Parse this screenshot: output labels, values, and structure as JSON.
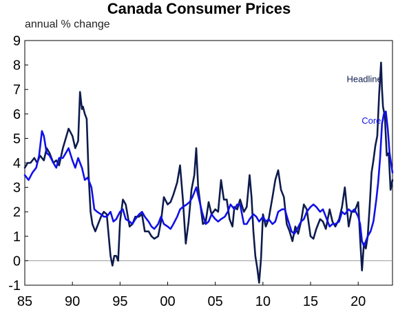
{
  "colors": {
    "headline": "#0d1b4c",
    "core": "#1010e8",
    "zero_line": "#9a9a9a",
    "frame": "#000000"
  },
  "chart_data": {
    "type": "line",
    "title": "Canada Consumer Prices",
    "subtitle": "annual % change",
    "xlim": [
      1985,
      2023.6
    ],
    "ylim": [
      -1,
      9
    ],
    "x_ticks": [
      1985,
      1990,
      1995,
      2000,
      2005,
      2010,
      2015,
      2020
    ],
    "x_tick_labels": [
      "85",
      "90",
      "95",
      "00",
      "05",
      "10",
      "15",
      "20"
    ],
    "y_ticks": [
      -1,
      0,
      1,
      2,
      3,
      4,
      5,
      6,
      7,
      8,
      9
    ],
    "y_tick_labels": [
      "-1",
      "0",
      "1",
      "2",
      "3",
      "4",
      "5",
      "6",
      "7",
      "8",
      "9"
    ],
    "series": [
      {
        "name": "Headline",
        "color": "#0d1b4c",
        "x": [
          1985.0,
          1985.3,
          1985.6,
          1986.0,
          1986.3,
          1986.6,
          1987.0,
          1987.3,
          1987.6,
          1988.0,
          1988.3,
          1988.6,
          1989.0,
          1989.3,
          1989.6,
          1990.0,
          1990.3,
          1990.6,
          1990.8,
          1991.0,
          1991.1,
          1991.3,
          1991.5,
          1991.7,
          1991.9,
          1992.1,
          1992.4,
          1992.7,
          1993.0,
          1993.3,
          1993.6,
          1994.0,
          1994.2,
          1994.4,
          1994.6,
          1994.8,
          1995.0,
          1995.3,
          1995.6,
          1996.0,
          1996.3,
          1996.6,
          1997.0,
          1997.3,
          1997.6,
          1998.0,
          1998.3,
          1998.6,
          1999.0,
          1999.3,
          1999.6,
          2000.0,
          2000.3,
          2000.6,
          2001.0,
          2001.3,
          2001.6,
          2001.9,
          2002.2,
          2002.5,
          2002.8,
          2003.0,
          2003.2,
          2003.4,
          2003.7,
          2004.0,
          2004.3,
          2004.6,
          2005.0,
          2005.3,
          2005.6,
          2005.9,
          2006.2,
          2006.5,
          2006.8,
          2007.0,
          2007.3,
          2007.6,
          2008.0,
          2008.3,
          2008.6,
          2008.8,
          2009.0,
          2009.2,
          2009.4,
          2009.6,
          2009.8,
          2010.0,
          2010.3,
          2010.6,
          2011.0,
          2011.3,
          2011.6,
          2011.9,
          2012.2,
          2012.5,
          2012.8,
          2013.1,
          2013.4,
          2013.7,
          2014.0,
          2014.3,
          2014.6,
          2015.0,
          2015.3,
          2015.6,
          2016.0,
          2016.3,
          2016.6,
          2017.0,
          2017.3,
          2017.6,
          2018.0,
          2018.3,
          2018.6,
          2019.0,
          2019.3,
          2019.6,
          2020.0,
          2020.2,
          2020.4,
          2020.6,
          2020.8,
          2021.0,
          2021.2,
          2021.4,
          2021.6,
          2021.8,
          2022.0,
          2022.2,
          2022.4,
          2022.5,
          2022.6,
          2022.8,
          2023.0,
          2023.2,
          2023.4,
          2023.6
        ],
        "values": [
          3.8,
          4.0,
          4.0,
          4.2,
          4.0,
          4.3,
          4.1,
          4.6,
          4.4,
          4.0,
          4.1,
          3.9,
          4.6,
          5.0,
          5.4,
          5.1,
          4.6,
          4.9,
          6.9,
          6.2,
          6.3,
          6.0,
          5.8,
          3.5,
          2.0,
          1.5,
          1.2,
          1.5,
          1.8,
          2.0,
          1.9,
          0.2,
          -0.2,
          0.2,
          0.2,
          0.0,
          1.6,
          2.5,
          2.3,
          1.4,
          1.5,
          1.8,
          1.8,
          1.9,
          1.2,
          1.2,
          1.0,
          0.9,
          1.0,
          1.6,
          2.6,
          2.3,
          2.4,
          2.7,
          3.2,
          3.9,
          2.5,
          0.7,
          1.6,
          2.9,
          3.5,
          4.6,
          3.0,
          2.4,
          1.5,
          1.6,
          2.4,
          1.9,
          2.1,
          2.0,
          3.3,
          2.5,
          2.5,
          1.7,
          1.4,
          2.2,
          2.1,
          2.5,
          2.0,
          2.2,
          3.5,
          2.6,
          1.2,
          0.2,
          -0.3,
          -0.9,
          0.1,
          1.9,
          1.4,
          1.7,
          2.6,
          3.3,
          3.7,
          2.9,
          2.6,
          1.5,
          1.2,
          0.8,
          1.4,
          1.1,
          1.6,
          2.3,
          2.1,
          1.0,
          0.9,
          1.3,
          1.7,
          1.6,
          1.3,
          2.1,
          1.6,
          1.4,
          1.7,
          2.2,
          3.0,
          1.4,
          2.0,
          2.0,
          2.4,
          0.9,
          -0.4,
          0.7,
          0.5,
          1.0,
          2.2,
          3.6,
          4.1,
          4.7,
          5.1,
          6.8,
          8.1,
          7.0,
          6.3,
          5.9,
          4.3,
          4.4,
          2.9,
          3.3
        ]
      },
      {
        "name": "Core",
        "color": "#1010e8",
        "x": [
          1985.0,
          1985.4,
          1985.8,
          1986.2,
          1986.5,
          1986.8,
          1987.0,
          1987.3,
          1987.6,
          1988.0,
          1988.3,
          1988.6,
          1989.0,
          1989.3,
          1989.6,
          1990.0,
          1990.3,
          1990.6,
          1991.0,
          1991.3,
          1991.6,
          1992.0,
          1992.3,
          1992.6,
          1993.0,
          1993.3,
          1993.6,
          1994.0,
          1994.3,
          1994.6,
          1995.0,
          1995.3,
          1995.6,
          1996.0,
          1996.3,
          1996.6,
          1997.0,
          1997.3,
          1997.6,
          1998.0,
          1998.3,
          1998.6,
          1999.0,
          1999.3,
          1999.6,
          2000.0,
          2000.3,
          2000.6,
          2001.0,
          2001.3,
          2001.6,
          2002.0,
          2002.3,
          2002.6,
          2003.0,
          2003.3,
          2003.6,
          2004.0,
          2004.3,
          2004.6,
          2005.0,
          2005.3,
          2005.6,
          2006.0,
          2006.3,
          2006.6,
          2007.0,
          2007.3,
          2007.6,
          2008.0,
          2008.3,
          2008.6,
          2009.0,
          2009.3,
          2009.6,
          2010.0,
          2010.3,
          2010.6,
          2011.0,
          2011.3,
          2011.6,
          2012.0,
          2012.3,
          2012.6,
          2013.0,
          2013.3,
          2013.6,
          2014.0,
          2014.3,
          2014.6,
          2015.0,
          2015.3,
          2015.6,
          2016.0,
          2016.3,
          2016.6,
          2017.0,
          2017.3,
          2017.6,
          2018.0,
          2018.3,
          2018.6,
          2019.0,
          2019.3,
          2019.6,
          2020.0,
          2020.2,
          2020.4,
          2020.6,
          2020.8,
          2021.0,
          2021.3,
          2021.6,
          2021.9,
          2022.1,
          2022.3,
          2022.5,
          2022.7,
          2022.9,
          2023.1,
          2023.3,
          2023.6
        ],
        "values": [
          3.5,
          3.3,
          3.6,
          3.8,
          4.3,
          5.3,
          5.1,
          4.4,
          4.3,
          4.0,
          3.8,
          4.2,
          4.2,
          4.4,
          4.6,
          4.1,
          3.8,
          4.2,
          3.8,
          3.3,
          3.4,
          3.0,
          2.1,
          2.0,
          1.9,
          1.8,
          1.8,
          2.0,
          1.6,
          1.7,
          2.0,
          2.1,
          1.7,
          1.6,
          1.5,
          1.7,
          1.9,
          2.0,
          1.8,
          1.6,
          1.4,
          1.3,
          1.5,
          1.8,
          1.5,
          1.4,
          1.3,
          1.5,
          1.8,
          2.1,
          2.2,
          2.3,
          2.4,
          2.6,
          3.0,
          2.5,
          2.0,
          1.5,
          1.6,
          1.9,
          1.7,
          1.6,
          1.7,
          1.8,
          2.0,
          2.3,
          2.1,
          2.3,
          2.3,
          1.5,
          1.5,
          1.7,
          1.9,
          1.8,
          1.6,
          1.8,
          1.6,
          1.7,
          1.5,
          1.6,
          2.0,
          2.1,
          2.1,
          1.7,
          1.2,
          1.1,
          1.3,
          1.6,
          1.7,
          2.0,
          2.2,
          2.3,
          2.2,
          2.0,
          2.1,
          1.8,
          1.4,
          1.5,
          1.5,
          1.6,
          2.0,
          1.9,
          2.1,
          2.0,
          2.1,
          1.8,
          1.5,
          0.8,
          0.6,
          0.8,
          1.0,
          1.2,
          1.6,
          2.5,
          3.2,
          4.2,
          5.6,
          6.0,
          6.1,
          5.4,
          4.4,
          3.6
        ]
      }
    ],
    "annotations": [
      {
        "text": "Headline",
        "x": 2022.5,
        "y": 7.3,
        "series": "Headline"
      },
      {
        "text": "Core",
        "x": 2022.4,
        "y": 5.6,
        "series": "Core"
      }
    ],
    "zero_line": true,
    "grid": false,
    "legend": "none"
  }
}
